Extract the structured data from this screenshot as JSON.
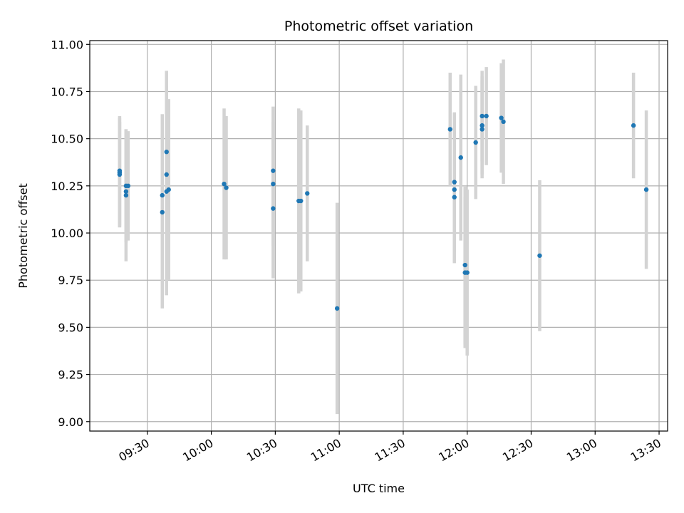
{
  "chart_data": {
    "type": "scatter",
    "title": "Photometric offset variation",
    "xlabel": "UTC time",
    "ylabel": "Photometric offset",
    "x_ticks": [
      "09:30",
      "10:00",
      "10:30",
      "11:00",
      "11:30",
      "12:00",
      "12:30",
      "13:00",
      "13:30"
    ],
    "y_ticks": [
      "9.00",
      "9.25",
      "9.50",
      "9.75",
      "10.00",
      "10.25",
      "10.50",
      "10.75",
      "11.00"
    ],
    "xlim": [
      "09:03",
      "13:34"
    ],
    "ylim": [
      8.95,
      11.02
    ],
    "grid": true,
    "marker_color": "#1f77b4",
    "errorbar_color": "#d3d3d3",
    "points": [
      {
        "t": "09:17",
        "y": 10.32,
        "err": 0.29
      },
      {
        "t": "09:17",
        "y": 10.31,
        "err": 0.28
      },
      {
        "t": "09:17",
        "y": 10.33,
        "err": 0.29
      },
      {
        "t": "09:20",
        "y": 10.25,
        "err": 0.3
      },
      {
        "t": "09:20",
        "y": 10.22,
        "err": 0.27
      },
      {
        "t": "09:20",
        "y": 10.2,
        "err": 0.35
      },
      {
        "t": "09:21",
        "y": 10.25,
        "err": 0.29
      },
      {
        "t": "09:37",
        "y": 10.11,
        "err": 0.51
      },
      {
        "t": "09:37",
        "y": 10.2,
        "err": 0.43
      },
      {
        "t": "09:39",
        "y": 10.43,
        "err": 0.43
      },
      {
        "t": "09:39",
        "y": 10.31,
        "err": 0.47
      },
      {
        "t": "09:40",
        "y": 10.23,
        "err": 0.48
      },
      {
        "t": "09:39",
        "y": 10.22,
        "err": 0.55
      },
      {
        "t": "10:06",
        "y": 10.26,
        "err": 0.4
      },
      {
        "t": "10:07",
        "y": 10.24,
        "err": 0.38
      },
      {
        "t": "10:29",
        "y": 10.33,
        "err": 0.34
      },
      {
        "t": "10:29",
        "y": 10.26,
        "err": 0.33
      },
      {
        "t": "10:29",
        "y": 10.13,
        "err": 0.37
      },
      {
        "t": "10:41",
        "y": 10.17,
        "err": 0.49
      },
      {
        "t": "10:42",
        "y": 10.17,
        "err": 0.48
      },
      {
        "t": "10:45",
        "y": 10.21,
        "err": 0.36
      },
      {
        "t": "10:59",
        "y": 9.6,
        "err": 0.56
      },
      {
        "t": "11:52",
        "y": 10.55,
        "err": 0.3
      },
      {
        "t": "11:54",
        "y": 10.27,
        "err": 0.37
      },
      {
        "t": "11:54",
        "y": 10.23,
        "err": 0.31
      },
      {
        "t": "11:54",
        "y": 10.19,
        "err": 0.35
      },
      {
        "t": "11:57",
        "y": 10.4,
        "err": 0.44
      },
      {
        "t": "11:59",
        "y": 9.83,
        "err": 0.42
      },
      {
        "t": "11:59",
        "y": 9.79,
        "err": 0.4
      },
      {
        "t": "12:00",
        "y": 9.79,
        "err": 0.44
      },
      {
        "t": "12:04",
        "y": 10.48,
        "err": 0.3
      },
      {
        "t": "12:07",
        "y": 10.62,
        "err": 0.24
      },
      {
        "t": "12:07",
        "y": 10.55,
        "err": 0.26
      },
      {
        "t": "12:07",
        "y": 10.57,
        "err": 0.26
      },
      {
        "t": "12:09",
        "y": 10.62,
        "err": 0.26
      },
      {
        "t": "12:16",
        "y": 10.61,
        "err": 0.29
      },
      {
        "t": "12:17",
        "y": 10.59,
        "err": 0.33
      },
      {
        "t": "12:34",
        "y": 9.88,
        "err": 0.4
      },
      {
        "t": "13:18",
        "y": 10.57,
        "err": 0.28
      },
      {
        "t": "13:24",
        "y": 10.23,
        "err": 0.42
      }
    ]
  }
}
